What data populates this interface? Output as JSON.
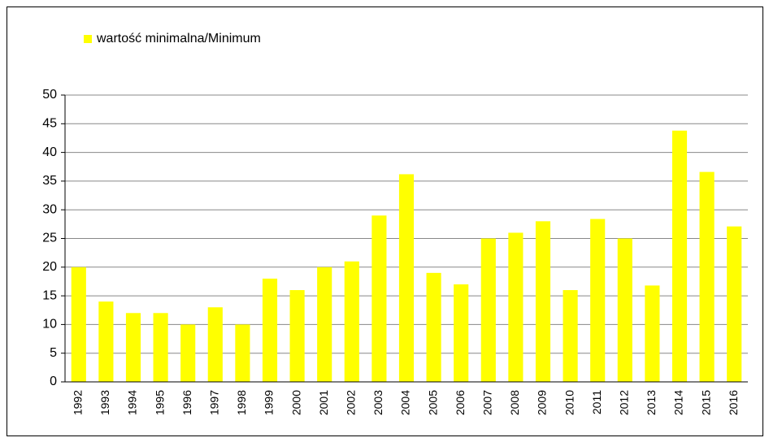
{
  "chart_data": {
    "type": "bar",
    "categories": [
      "1992",
      "1993",
      "1994",
      "1995",
      "1996",
      "1997",
      "1998",
      "1999",
      "2000",
      "2001",
      "2002",
      "2003",
      "2004",
      "2005",
      "2006",
      "2007",
      "2008",
      "2009",
      "2010",
      "2011",
      "2012",
      "2013",
      "2014",
      "2015",
      "2016"
    ],
    "series": [
      {
        "name": "wartość minimalna/Minimum",
        "color": "#ffff00",
        "values": [
          20,
          14,
          12,
          12,
          10,
          13,
          10,
          18,
          16,
          20,
          21,
          29,
          36.2,
          19,
          17,
          25,
          26,
          28,
          16,
          28.4,
          25,
          16.8,
          43.8,
          36.6,
          27.1
        ]
      }
    ],
    "ylim": [
      0,
      50
    ],
    "yticks": [
      0,
      5,
      10,
      15,
      20,
      25,
      30,
      35,
      40,
      45,
      50
    ],
    "grid": true,
    "legend": "top-left"
  }
}
